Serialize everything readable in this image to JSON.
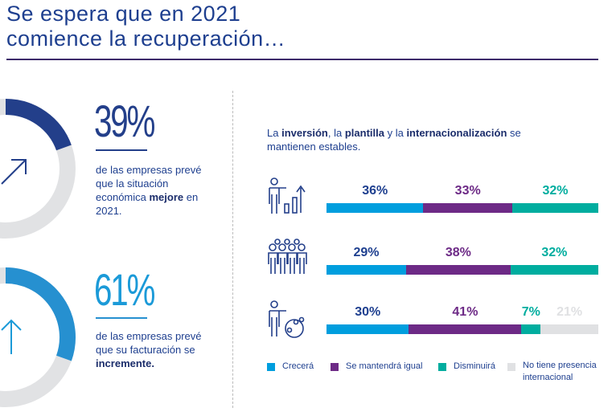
{
  "title": [
    "Se espera que en 2021",
    "comience la recuperación…"
  ],
  "stats": [
    {
      "value": "39%",
      "fraction": 0.39,
      "color": "#233f8a",
      "desc_pre": "de las empresas prevé que la situación económica ",
      "desc_bold": "mejore",
      "desc_post": " en 2021."
    },
    {
      "value": "61%",
      "fraction": 0.61,
      "color": "#2690d0",
      "desc_pre": "de las empresas prevé que su facturación se ",
      "desc_bold": "incremente.",
      "desc_post": ""
    }
  ],
  "subtitle": {
    "p1": "La ",
    "b1": "inversión",
    "p2": ", la ",
    "b2": "plantilla",
    "p3": " y la ",
    "b3": "internacionalización",
    "p4": " se mantienen estables."
  },
  "chart_data": {
    "type": "bar",
    "stacked": true,
    "orientation": "horizontal",
    "categories": [
      "inversión",
      "plantilla",
      "internacionalización"
    ],
    "series": [
      {
        "name": "Crecerá",
        "color": "#009ede",
        "label_color": "#1e3f8f",
        "values": [
          36,
          29,
          30
        ]
      },
      {
        "name": "Se mantendrá igual",
        "color": "#6d2a86",
        "label_color": "#6d2a86",
        "values": [
          33,
          38,
          41
        ]
      },
      {
        "name": "Disminuirá",
        "color": "#00ad9f",
        "label_color": "#00ad9f",
        "values": [
          32,
          32,
          7
        ]
      },
      {
        "name": "No tiene presencia internacional",
        "color": "#e0e1e3",
        "label_color": "#e0e1e3",
        "values": [
          0,
          0,
          21
        ]
      }
    ],
    "legend": "bottom"
  }
}
